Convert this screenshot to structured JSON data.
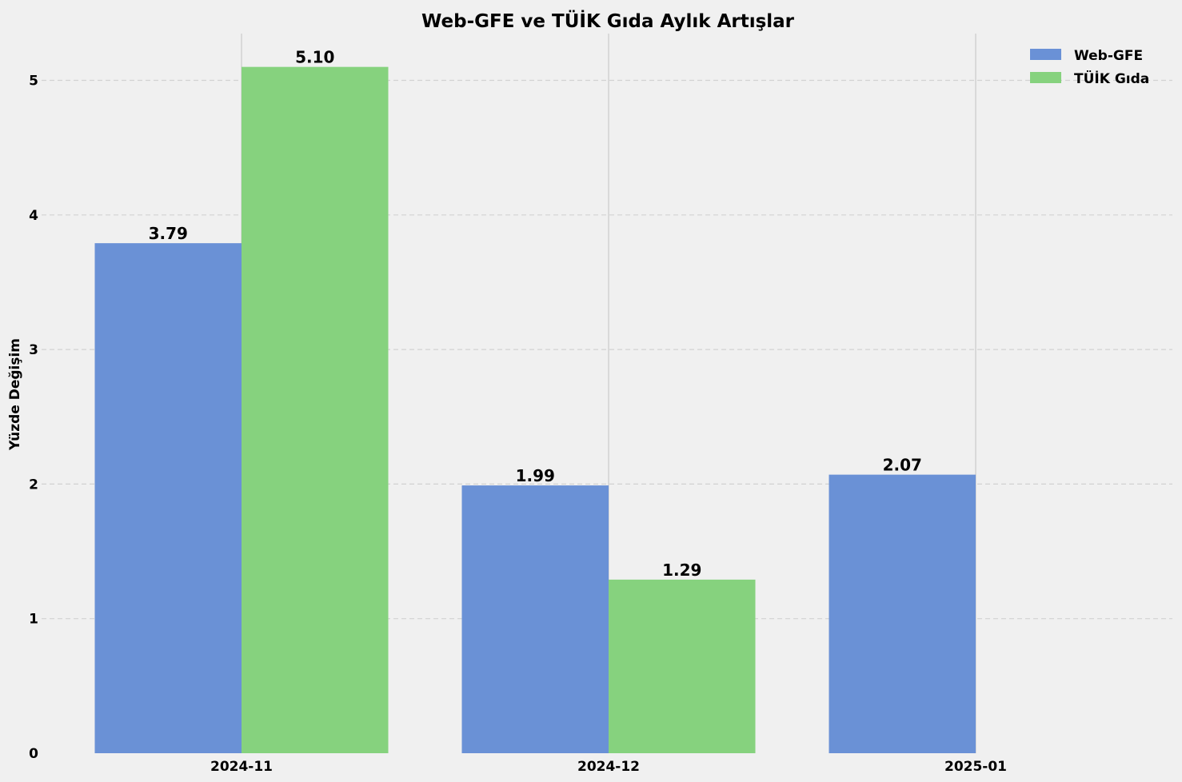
{
  "chart_data": {
    "type": "bar",
    "title": "Web-GFE ve TÜİK Gıda Aylık Artışlar",
    "xlabel": "",
    "ylabel": "Yüzde Değişim",
    "categories": [
      "2024-11",
      "2024-12",
      "2025-01"
    ],
    "series": [
      {
        "name": "Web-GFE",
        "values": [
          3.79,
          1.99,
          2.07
        ],
        "color": "#6a91d6",
        "labels": [
          "3.79",
          "1.99",
          "2.07"
        ]
      },
      {
        "name": "TÜİK Gıda",
        "values": [
          5.1,
          1.29,
          null
        ],
        "color": "#86d27e",
        "labels": [
          "5.10",
          "1.29",
          ""
        ]
      }
    ],
    "ylim": [
      0,
      5.35
    ],
    "yticks": [
      "0",
      "1",
      "2",
      "3",
      "4",
      "5"
    ],
    "grid": true,
    "legend": "top-right"
  }
}
